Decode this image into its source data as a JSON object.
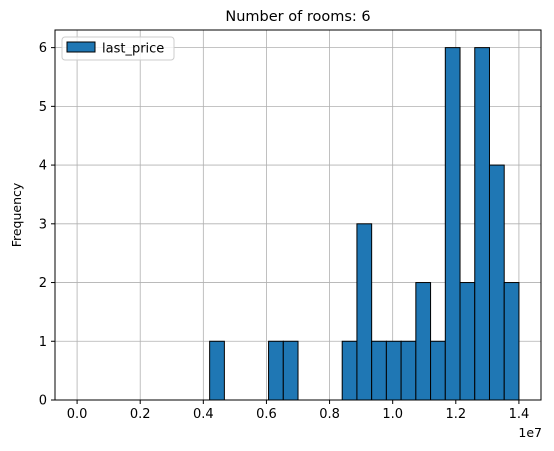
{
  "chart_data": {
    "type": "bar",
    "title": "Number of rooms: 6",
    "xlabel": "",
    "ylabel": "Frequency",
    "x_offset_label": "1e7",
    "xlim": [
      -0.07,
      1.47
    ],
    "ylim": [
      0,
      6.3
    ],
    "grid": true,
    "legend": {
      "position": "top-left",
      "entries": [
        "last_price"
      ]
    },
    "bar_color": "#1f77b4",
    "edge_color": "#000000",
    "bin_start": 0.0,
    "bin_width": 0.04667,
    "values": [
      0,
      0,
      0,
      0,
      0,
      0,
      0,
      0,
      0,
      1,
      0,
      0,
      0,
      1,
      1,
      0,
      0,
      0,
      1,
      3,
      1,
      1,
      1,
      2,
      1,
      6,
      2,
      6,
      4,
      2
    ],
    "x_ticks": [
      0.0,
      0.2,
      0.4,
      0.6,
      0.8,
      1.0,
      1.2,
      1.4
    ],
    "x_tick_labels": [
      "0.0",
      "0.2",
      "0.4",
      "0.6",
      "0.8",
      "1.0",
      "1.2",
      "1.4"
    ],
    "y_ticks": [
      0,
      1,
      2,
      3,
      4,
      5,
      6
    ],
    "y_tick_labels": [
      "0",
      "1",
      "2",
      "3",
      "4",
      "5",
      "6"
    ]
  }
}
